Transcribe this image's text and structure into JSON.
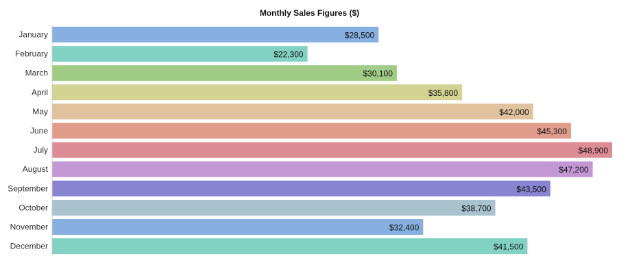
{
  "chart_data": {
    "type": "bar",
    "orientation": "horizontal",
    "title": "Monthly Sales Figures ($)",
    "xlabel": "",
    "ylabel": "",
    "categories": [
      "January",
      "February",
      "March",
      "April",
      "May",
      "June",
      "July",
      "August",
      "September",
      "October",
      "November",
      "December"
    ],
    "values": [
      28500,
      22300,
      30100,
      35800,
      42000,
      45300,
      48900,
      47200,
      43500,
      38700,
      32400,
      41500
    ],
    "value_labels": [
      "$28,500",
      "$22,300",
      "$30,100",
      "$35,800",
      "$42,000",
      "$45,300",
      "$48,900",
      "$47,200",
      "$43,500",
      "$38,700",
      "$32,400",
      "$41,500"
    ],
    "colors": [
      "#85b0e0",
      "#82d2c4",
      "#a0cc86",
      "#d3d394",
      "#e0c29c",
      "#e09c8a",
      "#dc8c94",
      "#c396d4",
      "#8884d0",
      "#a8c2d0",
      "#85b0e0",
      "#82d2c4"
    ],
    "xlim": [
      0,
      48900
    ],
    "grid": false,
    "legend": "none"
  }
}
